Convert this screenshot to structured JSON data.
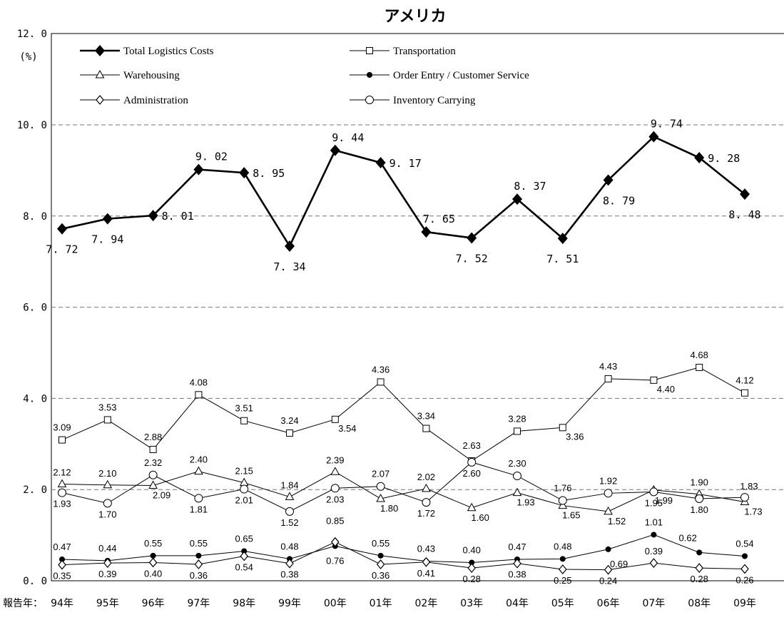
{
  "chart_data": {
    "type": "line",
    "title": "アメリカ",
    "y_unit": "(%)",
    "x_axis_prefix": "報告年：",
    "categories": [
      "94年",
      "95年",
      "96年",
      "97年",
      "98年",
      "99年",
      "00年",
      "01年",
      "02年",
      "03年",
      "04年",
      "05年",
      "06年",
      "07年",
      "08年",
      "09年"
    ],
    "ylim": [
      0,
      12
    ],
    "y_ticks": [
      "0. 0",
      "2. 0",
      "4. 0",
      "6. 0",
      "8. 0",
      "10. 0",
      "12. 0"
    ],
    "grid": "dashed horizontal at 2.0, 4.0, 6.0, 8.0, 10.0",
    "legend_position": "top, inside plot, two columns",
    "series": [
      {
        "name": "Total Logistics Costs",
        "marker": "diamond-filled",
        "thick": true,
        "values": [
          7.72,
          7.94,
          8.01,
          9.02,
          8.95,
          7.34,
          9.44,
          9.17,
          7.65,
          7.52,
          8.37,
          7.51,
          8.79,
          9.74,
          9.28,
          8.48
        ],
        "labels": [
          "7. 72",
          "7. 94",
          "8. 01",
          "9. 02",
          "8. 95",
          "7. 34",
          "9. 44",
          "9. 17",
          "7. 65",
          "7. 52",
          "8. 37",
          "7. 51",
          "8. 79",
          "9. 74",
          "9. 28",
          "8. 48"
        ]
      },
      {
        "name": "Transportation",
        "marker": "square-open",
        "values": [
          3.09,
          3.53,
          2.88,
          4.08,
          3.51,
          3.24,
          3.54,
          4.36,
          3.34,
          2.63,
          3.28,
          3.36,
          4.43,
          4.4,
          4.68,
          4.12
        ],
        "labels": [
          "3.09",
          "3.53",
          "2.88",
          "4.08",
          "3.51",
          "3.24",
          "3.54",
          "4.36",
          "3.34",
          "2.63",
          "3.28",
          "3.36",
          "4.43",
          "4.40",
          "4.68",
          "4.12"
        ]
      },
      {
        "name": "Warehousing",
        "marker": "triangle-open",
        "values": [
          2.12,
          2.1,
          2.09,
          2.4,
          2.15,
          1.84,
          2.39,
          1.8,
          2.02,
          1.6,
          1.93,
          1.65,
          1.52,
          1.99,
          1.9,
          1.73
        ],
        "labels": [
          "2.12",
          "2.10",
          "2.09",
          "2.40",
          "2.15",
          "1.84",
          "2.39",
          "1.80",
          "2.02",
          "1.60",
          "1.93",
          "1.65",
          "1.52",
          "1.99",
          "1.90",
          "1.73"
        ]
      },
      {
        "name": "Order Entry / Customer Service",
        "marker": "circle-filled",
        "values": [
          0.47,
          0.44,
          0.55,
          0.55,
          0.65,
          0.48,
          0.76,
          0.55,
          0.43,
          0.4,
          0.47,
          0.48,
          0.69,
          1.01,
          0.62,
          0.54
        ],
        "labels": [
          "0.47",
          "0.44",
          "0.55",
          "0.55",
          "0.65",
          "0.48",
          "0.76",
          "0.55",
          "0.43",
          "0.40",
          "0.47",
          "0.48",
          "0.69",
          "1.01",
          "0.62",
          "0.54"
        ]
      },
      {
        "name": "Administration",
        "marker": "diamond-open",
        "values": [
          0.35,
          0.39,
          0.4,
          0.36,
          0.54,
          0.38,
          0.85,
          0.36,
          0.41,
          0.28,
          0.38,
          0.25,
          0.24,
          0.39,
          0.28,
          0.26
        ],
        "labels": [
          "0.35",
          "0.39",
          "0.40",
          "0.36",
          "0.54",
          "0.38",
          "0.85",
          "0.36",
          "0.41",
          "0.28",
          "0.38",
          "0.25",
          "0.24",
          "0.39",
          "0.28",
          "0.26"
        ]
      },
      {
        "name": "Inventory Carrying",
        "marker": "circle-open",
        "values": [
          1.93,
          1.7,
          2.32,
          1.81,
          2.01,
          1.52,
          2.03,
          2.07,
          1.72,
          2.6,
          2.3,
          1.76,
          1.92,
          1.95,
          1.8,
          1.83
        ],
        "labels": [
          "1.93",
          "1.70",
          "2.32",
          "1.81",
          "2.01",
          "1.52",
          "2.03",
          "2.07",
          "1.72",
          "2.60",
          "2.30",
          "1.76",
          "1.92",
          "1.95",
          "1.80",
          "1.83"
        ]
      }
    ]
  }
}
